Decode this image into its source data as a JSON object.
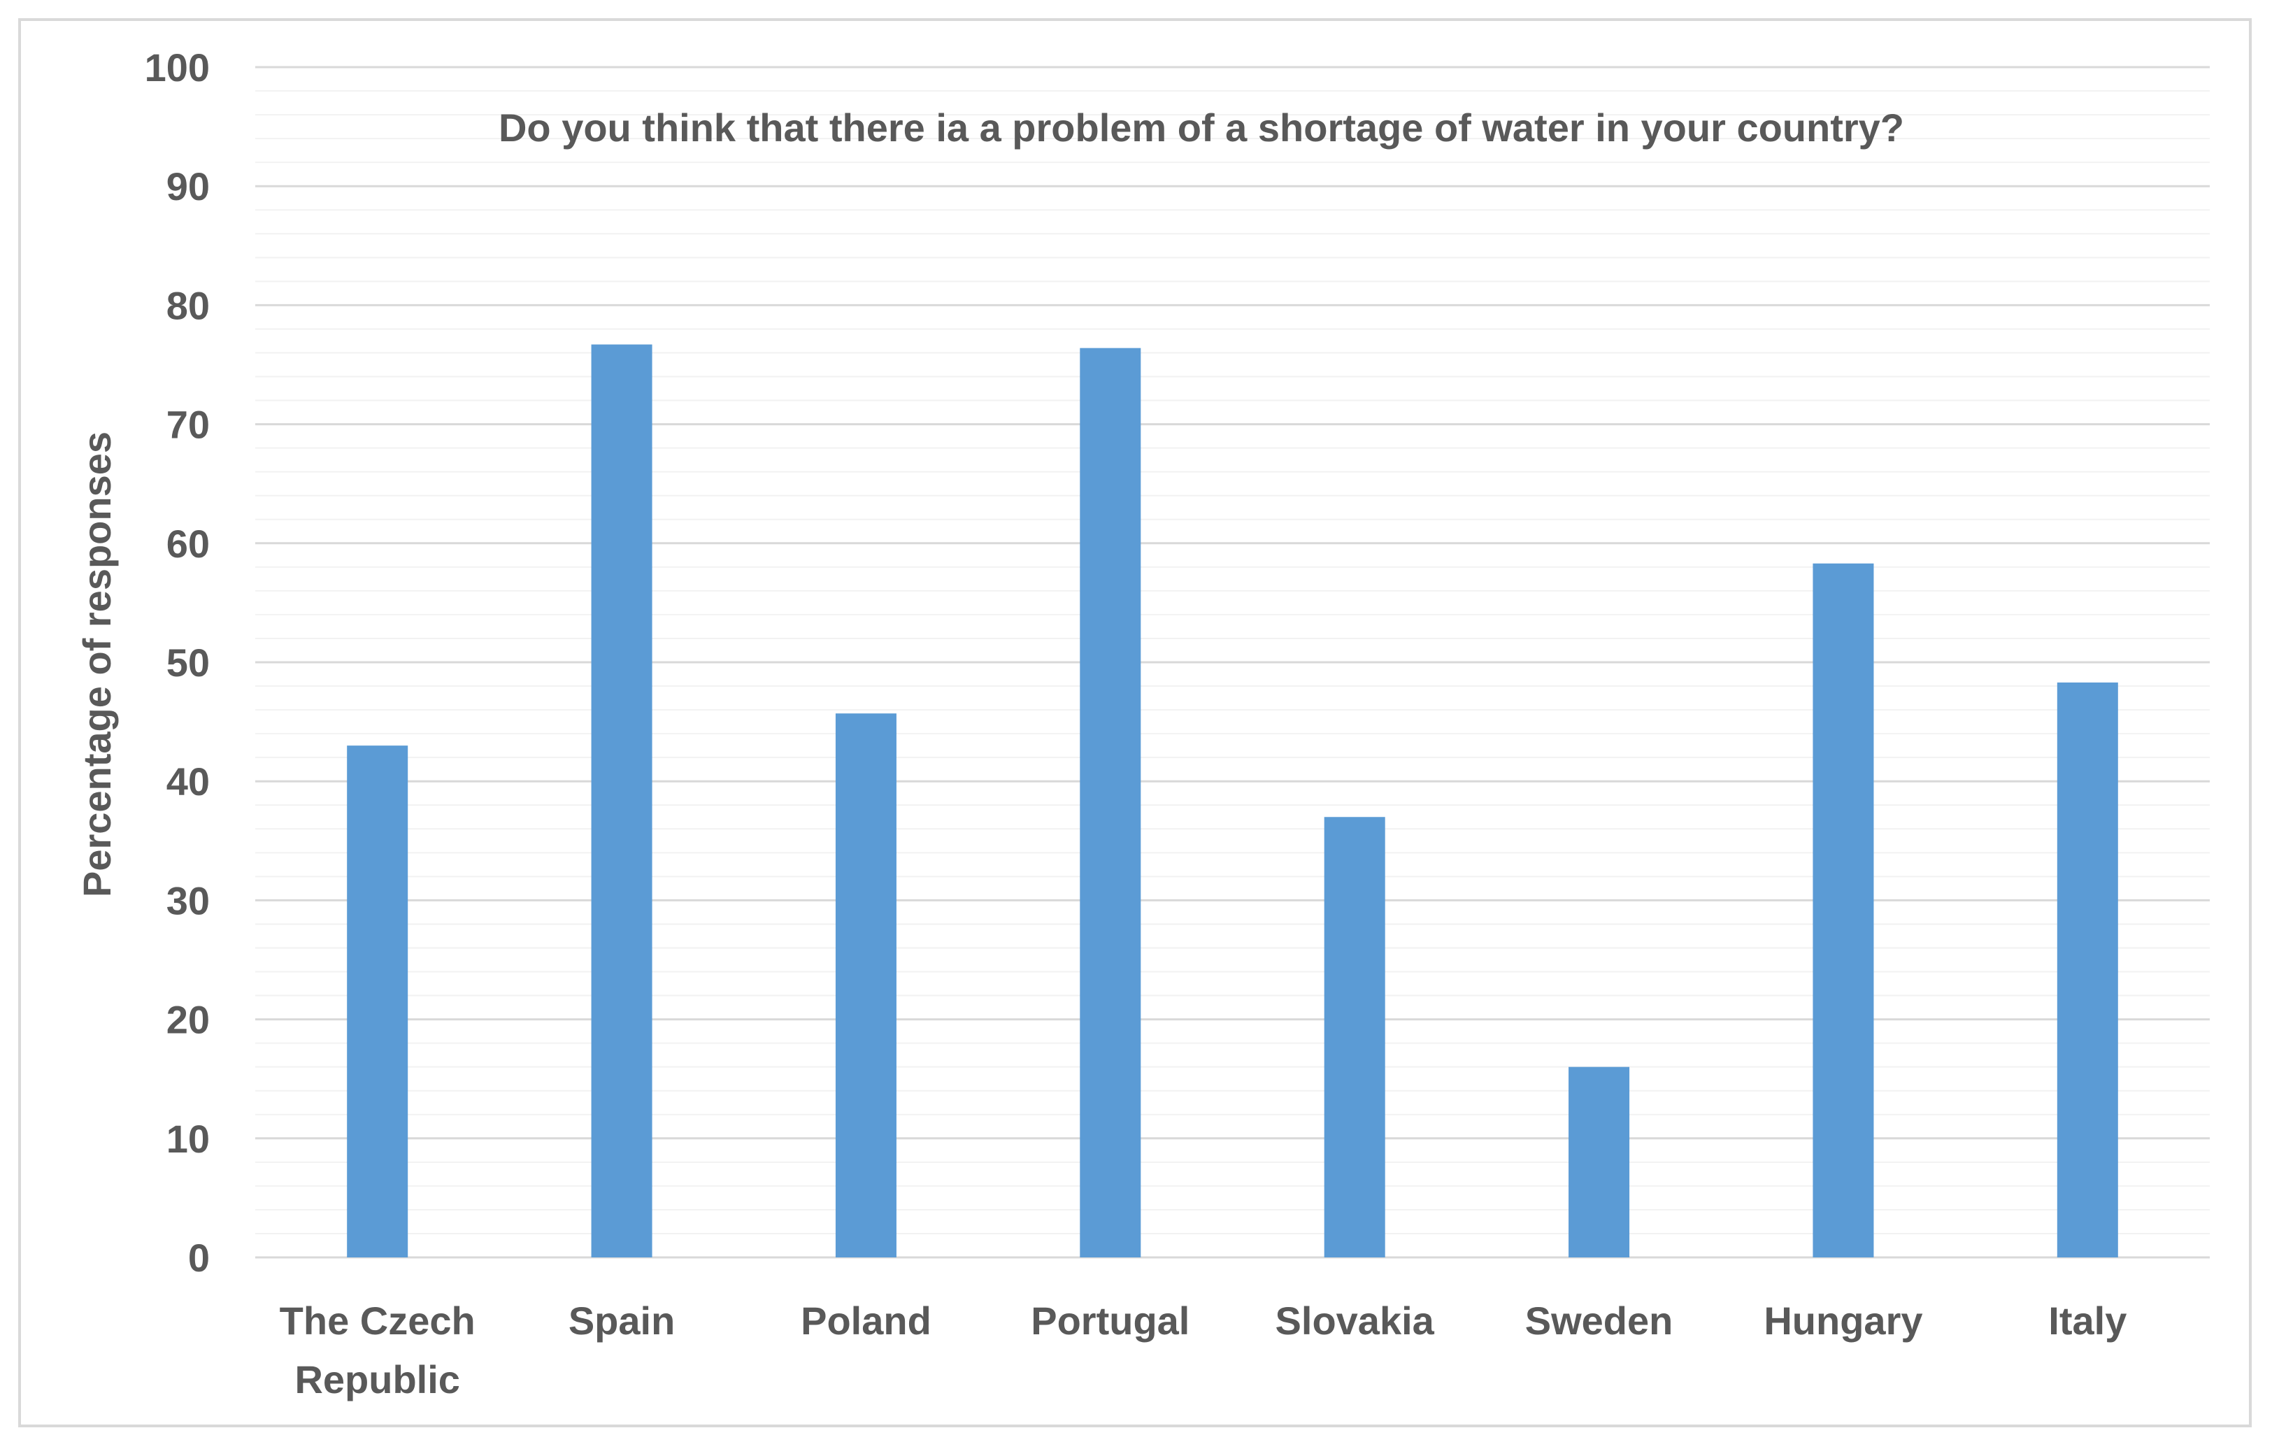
{
  "chart_data": {
    "type": "bar",
    "title": "Do you think that there ia a problem of a shortage of water in your country?",
    "xlabel": "",
    "ylabel": "Percentage of responses",
    "categories": [
      [
        "The Czech",
        "Republic"
      ],
      [
        "Spain"
      ],
      [
        "Poland"
      ],
      [
        "Portugal"
      ],
      [
        "Slovakia"
      ],
      [
        "Sweden"
      ],
      [
        "Hungary"
      ],
      [
        "Italy"
      ]
    ],
    "values": [
      43,
      76.7,
      45.7,
      76.4,
      37,
      16,
      58.3,
      48.3
    ],
    "ylim": [
      0,
      100
    ],
    "yticks": [
      0,
      10,
      20,
      30,
      40,
      50,
      60,
      70,
      80,
      90,
      100
    ],
    "minor_step": 2,
    "grid": true,
    "legend": "none",
    "colors": {
      "bar": "#5b9bd5",
      "major_grid": "#d9d9d9",
      "minor_grid": "#f2f2f2",
      "text": "#595959",
      "frame": "#d9d9d9"
    }
  }
}
